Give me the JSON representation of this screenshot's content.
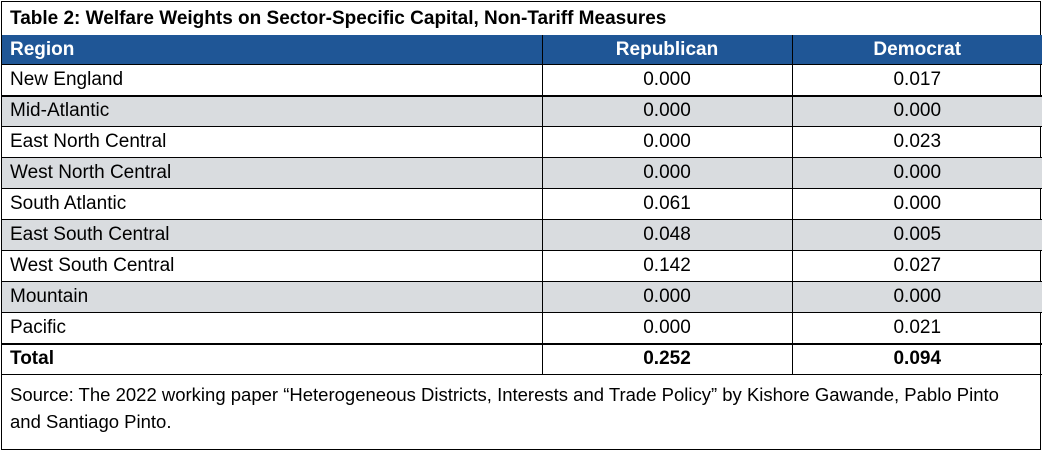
{
  "chart_data": {
    "type": "table",
    "title": "Table 2: Welfare Weights on Sector-Specific Capital, Non-Tariff Measures",
    "columns": [
      "Region",
      "Republican",
      "Democrat"
    ],
    "rows": [
      {
        "region": "New England",
        "republican": "0.000",
        "democrat": "0.017"
      },
      {
        "region": "Mid-Atlantic",
        "republican": "0.000",
        "democrat": "0.000"
      },
      {
        "region": "East North Central",
        "republican": "0.000",
        "democrat": "0.023"
      },
      {
        "region": "West North Central",
        "republican": "0.000",
        "democrat": "0.000"
      },
      {
        "region": "South Atlantic",
        "republican": "0.061",
        "democrat": "0.000"
      },
      {
        "region": "East South Central",
        "republican": "0.048",
        "democrat": "0.005"
      },
      {
        "region": "West South Central",
        "republican": "0.142",
        "democrat": "0.027"
      },
      {
        "region": "Mountain",
        "republican": "0.000",
        "democrat": "0.000"
      },
      {
        "region": "Pacific",
        "republican": "0.000",
        "democrat": "0.021"
      }
    ],
    "total": {
      "label": "Total",
      "republican": "0.252",
      "democrat": "0.094"
    },
    "source": "Source: The 2022 working paper “Heterogeneous Districts, Interests and Trade Policy” by Kishore Gawande, Pablo Pinto and Santiago Pinto."
  },
  "colors": {
    "header_bg": "#1f5696",
    "alt_row_bg": "#d9dcdf",
    "header_text": "#ffffff"
  }
}
